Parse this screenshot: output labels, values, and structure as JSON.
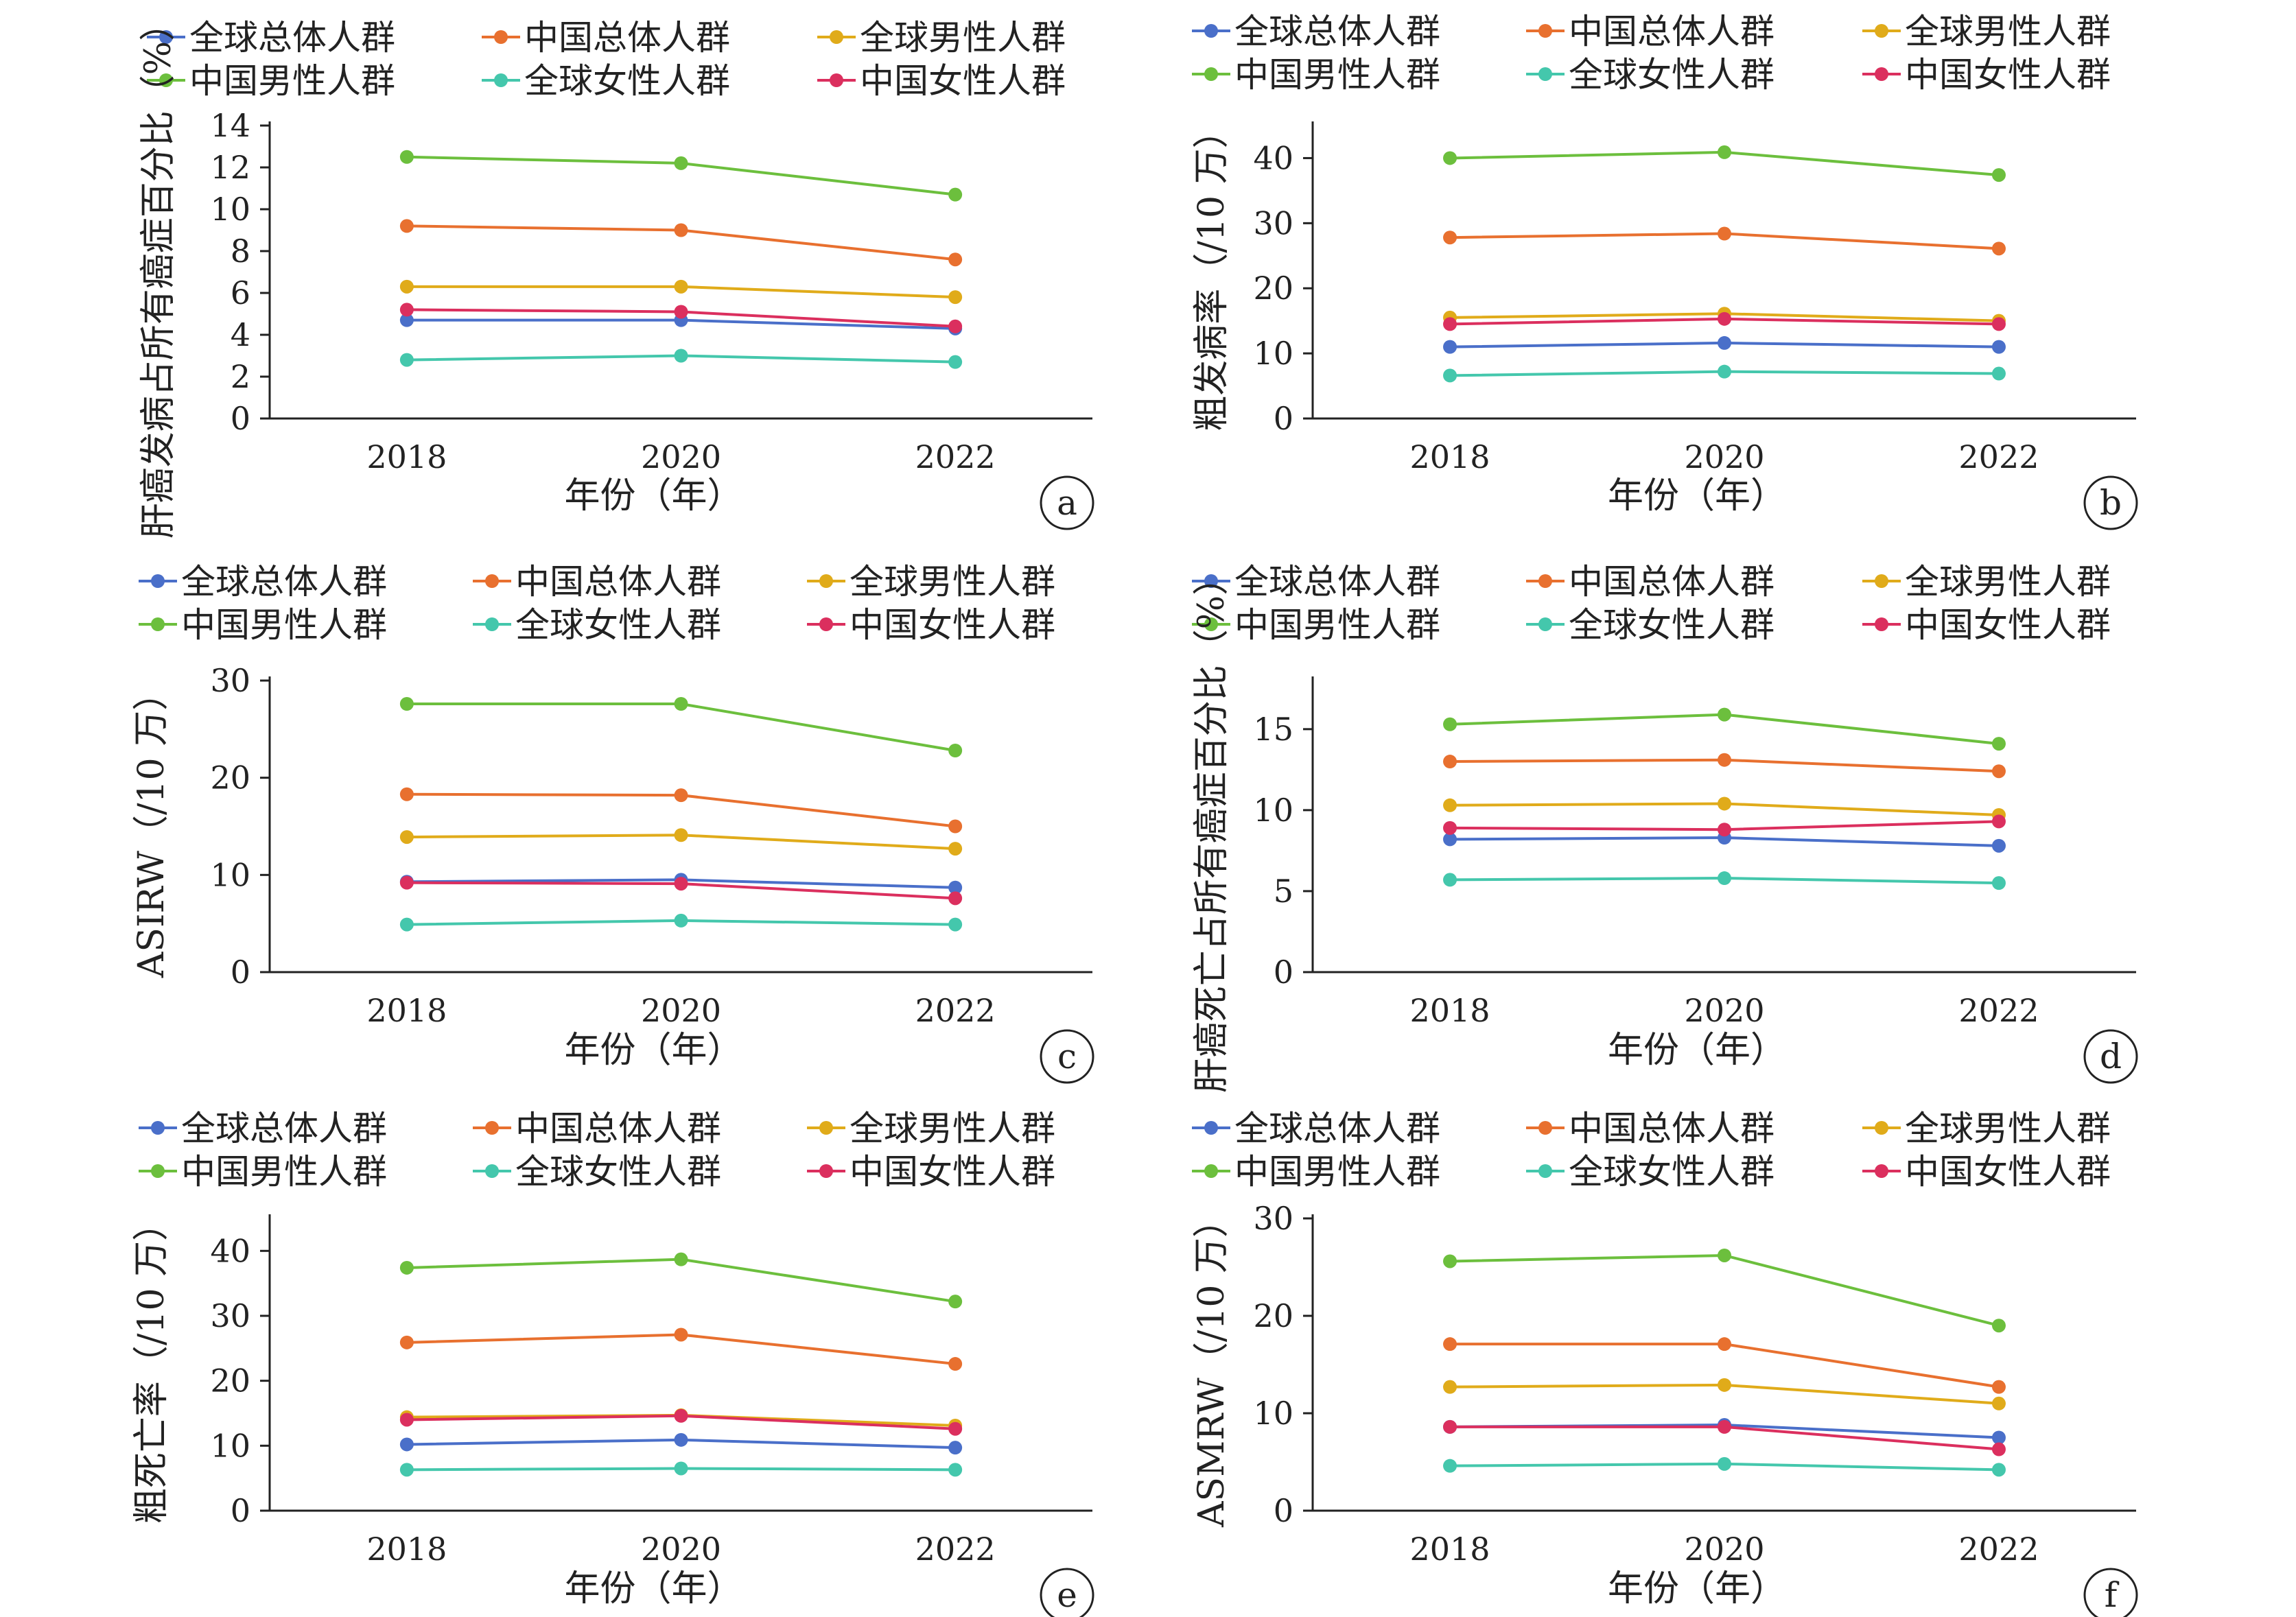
{
  "legend_labels": [
    "全球总体人群",
    "中国总体人群",
    "全球男性人群",
    "中国男性人群",
    "全球女性人群",
    "中国女性人群"
  ],
  "series_colors": [
    "#4a6fc9",
    "#e8702f",
    "#e0ab1a",
    "#6cbf3d",
    "#44c7ac",
    "#db2f5e"
  ],
  "chart_data": [
    {
      "id": "a",
      "type": "line",
      "panel_label": "a",
      "x": [
        "2018",
        "2020",
        "2022"
      ],
      "xlabel": "年份（年）",
      "ylabel": "肝癌发病占所有癌症百分比（%）",
      "ylim": [
        0,
        14
      ],
      "yticks": [
        0,
        2,
        4,
        6,
        8,
        10,
        12,
        14
      ],
      "series": [
        {
          "name": "全球总体人群",
          "values": [
            4.7,
            4.7,
            4.3
          ]
        },
        {
          "name": "中国总体人群",
          "values": [
            9.2,
            9.0,
            7.6
          ]
        },
        {
          "name": "全球男性人群",
          "values": [
            6.3,
            6.3,
            5.8
          ]
        },
        {
          "name": "中国男性人群",
          "values": [
            12.5,
            12.2,
            10.7
          ]
        },
        {
          "name": "全球女性人群",
          "values": [
            2.8,
            3.0,
            2.7
          ]
        },
        {
          "name": "中国女性人群",
          "values": [
            5.2,
            5.1,
            4.4
          ]
        }
      ]
    },
    {
      "id": "b",
      "type": "line",
      "panel_label": "b",
      "x": [
        "2018",
        "2020",
        "2022"
      ],
      "xlabel": "年份（年）",
      "ylabel": "粗发病率（/10 万）",
      "ylim": [
        0,
        45
      ],
      "yticks": [
        0,
        10,
        20,
        30,
        40
      ],
      "series": [
        {
          "name": "全球总体人群",
          "values": [
            11.0,
            11.6,
            11.0
          ]
        },
        {
          "name": "中国总体人群",
          "values": [
            27.8,
            28.4,
            26.1
          ]
        },
        {
          "name": "全球男性人群",
          "values": [
            15.5,
            16.1,
            15.0
          ]
        },
        {
          "name": "中国男性人群",
          "values": [
            40.0,
            40.9,
            37.4
          ]
        },
        {
          "name": "全球女性人群",
          "values": [
            6.6,
            7.2,
            6.9
          ]
        },
        {
          "name": "中国女性人群",
          "values": [
            14.5,
            15.3,
            14.5
          ]
        }
      ]
    },
    {
      "id": "c",
      "type": "line",
      "panel_label": "c",
      "x": [
        "2018",
        "2020",
        "2022"
      ],
      "xlabel": "年份（年）",
      "ylabel": "ASIRW（/10 万）",
      "ylim": [
        0,
        30
      ],
      "yticks": [
        0,
        10,
        20,
        30
      ],
      "series": [
        {
          "name": "全球总体人群",
          "values": [
            9.3,
            9.5,
            8.7
          ]
        },
        {
          "name": "中国总体人群",
          "values": [
            18.3,
            18.2,
            15.0
          ]
        },
        {
          "name": "全球男性人群",
          "values": [
            13.9,
            14.1,
            12.7
          ]
        },
        {
          "name": "中国男性人群",
          "values": [
            27.6,
            27.6,
            22.8
          ]
        },
        {
          "name": "全球女性人群",
          "values": [
            4.9,
            5.3,
            4.9
          ]
        },
        {
          "name": "中国女性人群",
          "values": [
            9.2,
            9.1,
            7.6
          ]
        }
      ]
    },
    {
      "id": "d",
      "type": "line",
      "panel_label": "d",
      "x": [
        "2018",
        "2020",
        "2022"
      ],
      "xlabel": "年份（年）",
      "ylabel": "肝癌死亡占所有癌症百分比（%）",
      "ylim": [
        0,
        18
      ],
      "yticks": [
        0,
        5,
        10,
        15
      ],
      "series": [
        {
          "name": "全球总体人群",
          "values": [
            8.2,
            8.3,
            7.8
          ]
        },
        {
          "name": "中国总体人群",
          "values": [
            13.0,
            13.1,
            12.4
          ]
        },
        {
          "name": "全球男性人群",
          "values": [
            10.3,
            10.4,
            9.7
          ]
        },
        {
          "name": "中国男性人群",
          "values": [
            15.3,
            15.9,
            14.1
          ]
        },
        {
          "name": "全球女性人群",
          "values": [
            5.7,
            5.8,
            5.5
          ]
        },
        {
          "name": "中国女性人群",
          "values": [
            8.9,
            8.8,
            9.3
          ]
        }
      ]
    },
    {
      "id": "e",
      "type": "line",
      "panel_label": "e",
      "x": [
        "2018",
        "2020",
        "2022"
      ],
      "xlabel": "年份（年）",
      "ylabel": "粗死亡率（/10 万）",
      "ylim": [
        0,
        45
      ],
      "yticks": [
        0,
        10,
        20,
        30,
        40
      ],
      "series": [
        {
          "name": "全球总体人群",
          "values": [
            10.2,
            10.9,
            9.7
          ]
        },
        {
          "name": "中国总体人群",
          "values": [
            25.9,
            27.1,
            22.6
          ]
        },
        {
          "name": "全球男性人群",
          "values": [
            14.4,
            14.7,
            13.1
          ]
        },
        {
          "name": "中国男性人群",
          "values": [
            37.4,
            38.7,
            32.2
          ]
        },
        {
          "name": "全球女性人群",
          "values": [
            6.3,
            6.5,
            6.3
          ]
        },
        {
          "name": "中国女性人群",
          "values": [
            14.0,
            14.6,
            12.6
          ]
        }
      ]
    },
    {
      "id": "f",
      "type": "line",
      "panel_label": "f",
      "x": [
        "2018",
        "2020",
        "2022"
      ],
      "xlabel": "年份（年）",
      "ylabel": "ASMRW（/10 万）",
      "ylim": [
        0,
        30
      ],
      "yticks": [
        0,
        10,
        20,
        30
      ],
      "series": [
        {
          "name": "全球总体人群",
          "values": [
            8.6,
            8.8,
            7.5
          ]
        },
        {
          "name": "中国总体人群",
          "values": [
            17.1,
            17.1,
            12.7
          ]
        },
        {
          "name": "全球男性人群",
          "values": [
            12.7,
            12.9,
            11.0
          ]
        },
        {
          "name": "中国男性人群",
          "values": [
            25.6,
            26.2,
            19.0
          ]
        },
        {
          "name": "全球女性人群",
          "values": [
            4.6,
            4.8,
            4.2
          ]
        },
        {
          "name": "中国女性人群",
          "values": [
            8.6,
            8.6,
            6.3
          ]
        }
      ]
    }
  ]
}
